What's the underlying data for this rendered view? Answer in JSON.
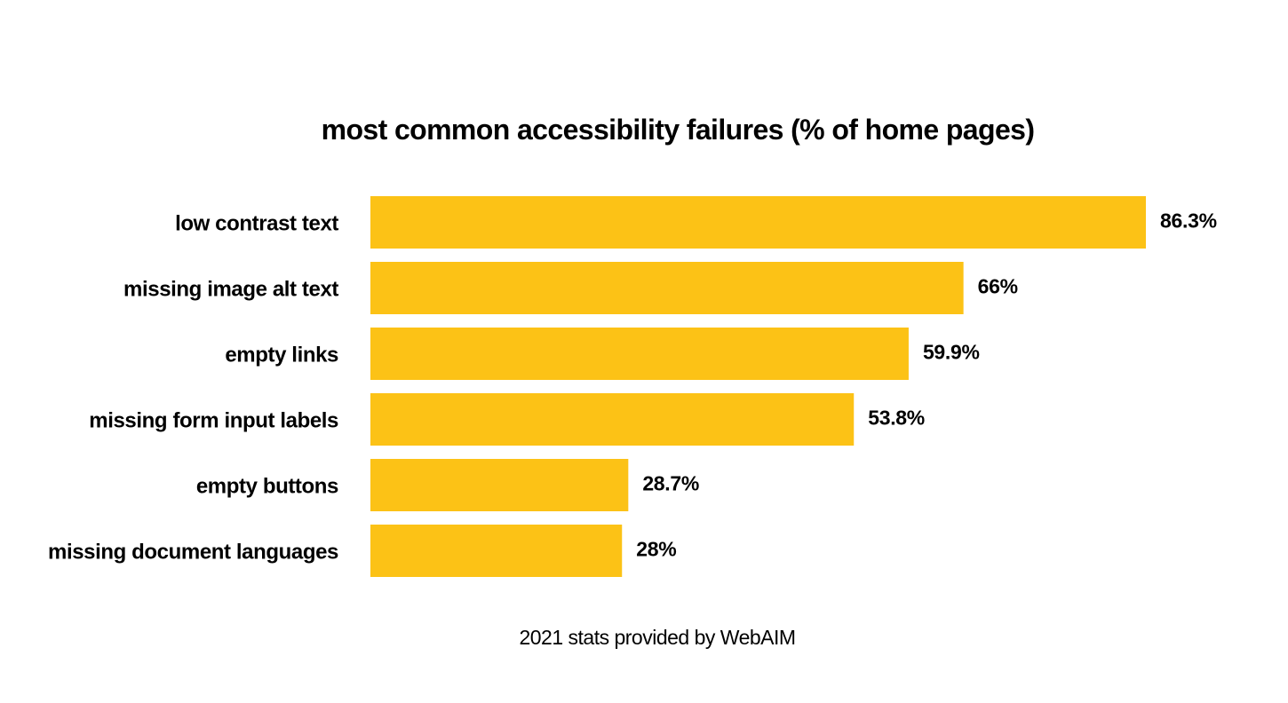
{
  "chart_data": {
    "type": "bar",
    "orientation": "horizontal",
    "title": "most common accessibility failures (% of home pages)",
    "categories": [
      "low contrast text",
      "missing image alt text",
      "empty links",
      "missing form input labels",
      "empty buttons",
      "missing document languages"
    ],
    "values": [
      86.3,
      66,
      59.9,
      53.8,
      28.7,
      28
    ],
    "value_labels": [
      "86.3%",
      "66%",
      "59.9%",
      "53.8%",
      "28.7%",
      "28%"
    ],
    "unit": "%",
    "xlim": [
      0,
      100
    ],
    "grid": false,
    "legend": "none",
    "bar_color": "#FCC216"
  },
  "footnote": "2021 stats provided by WebAIM"
}
